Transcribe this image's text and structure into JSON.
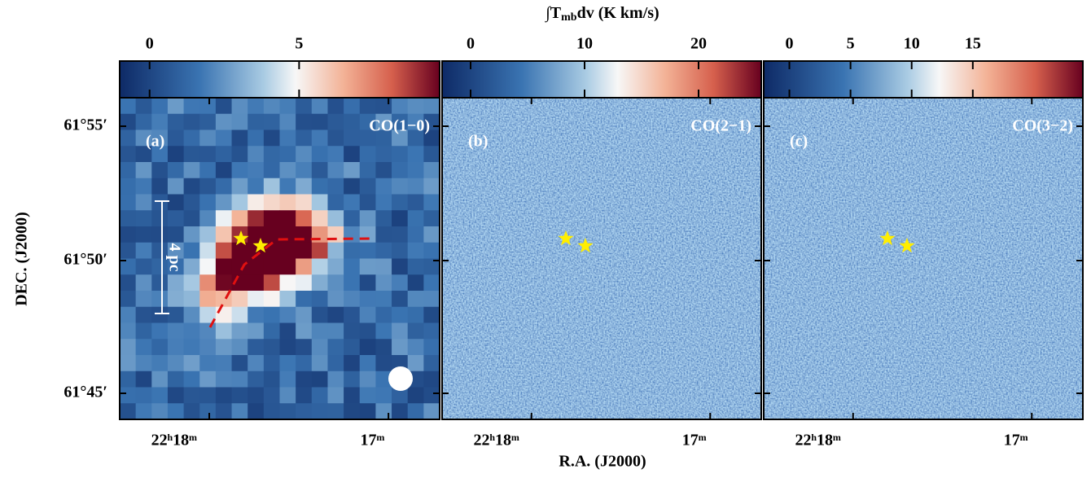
{
  "colorbar_title": {
    "integral": "∫T",
    "subscript": "mb",
    "rest": "dv (K km/s)"
  },
  "x_axis_title": "R.A. (J2000)",
  "y_axis_title": "DEC. (J2000)",
  "y_tick_labels": [
    "61°55′",
    "61°50′",
    "61°45′"
  ],
  "panels": [
    {
      "label": "(a)",
      "line": "CO(1−0)",
      "colorbar_range": [
        -1,
        9.7
      ],
      "colorbar_ticks": [
        0,
        5
      ],
      "x_tick_labels": [
        "22ʰ18ᵐ",
        "17ᵐ"
      ],
      "scale_bar": "4 pc"
    },
    {
      "label": "(b)",
      "line": "CO(2−1)",
      "colorbar_range": [
        -2.5,
        25.5
      ],
      "colorbar_ticks": [
        0,
        10,
        20
      ],
      "x_tick_labels": [
        "22ʰ18ᵐ",
        "17ᵐ"
      ]
    },
    {
      "label": "(c)",
      "line": "CO(3−2)",
      "colorbar_range": [
        -2.1,
        24
      ],
      "colorbar_ticks": [
        0,
        5,
        10,
        15
      ],
      "x_tick_labels": [
        "22ʰ18ᵐ",
        "17ᵐ"
      ]
    }
  ]
}
